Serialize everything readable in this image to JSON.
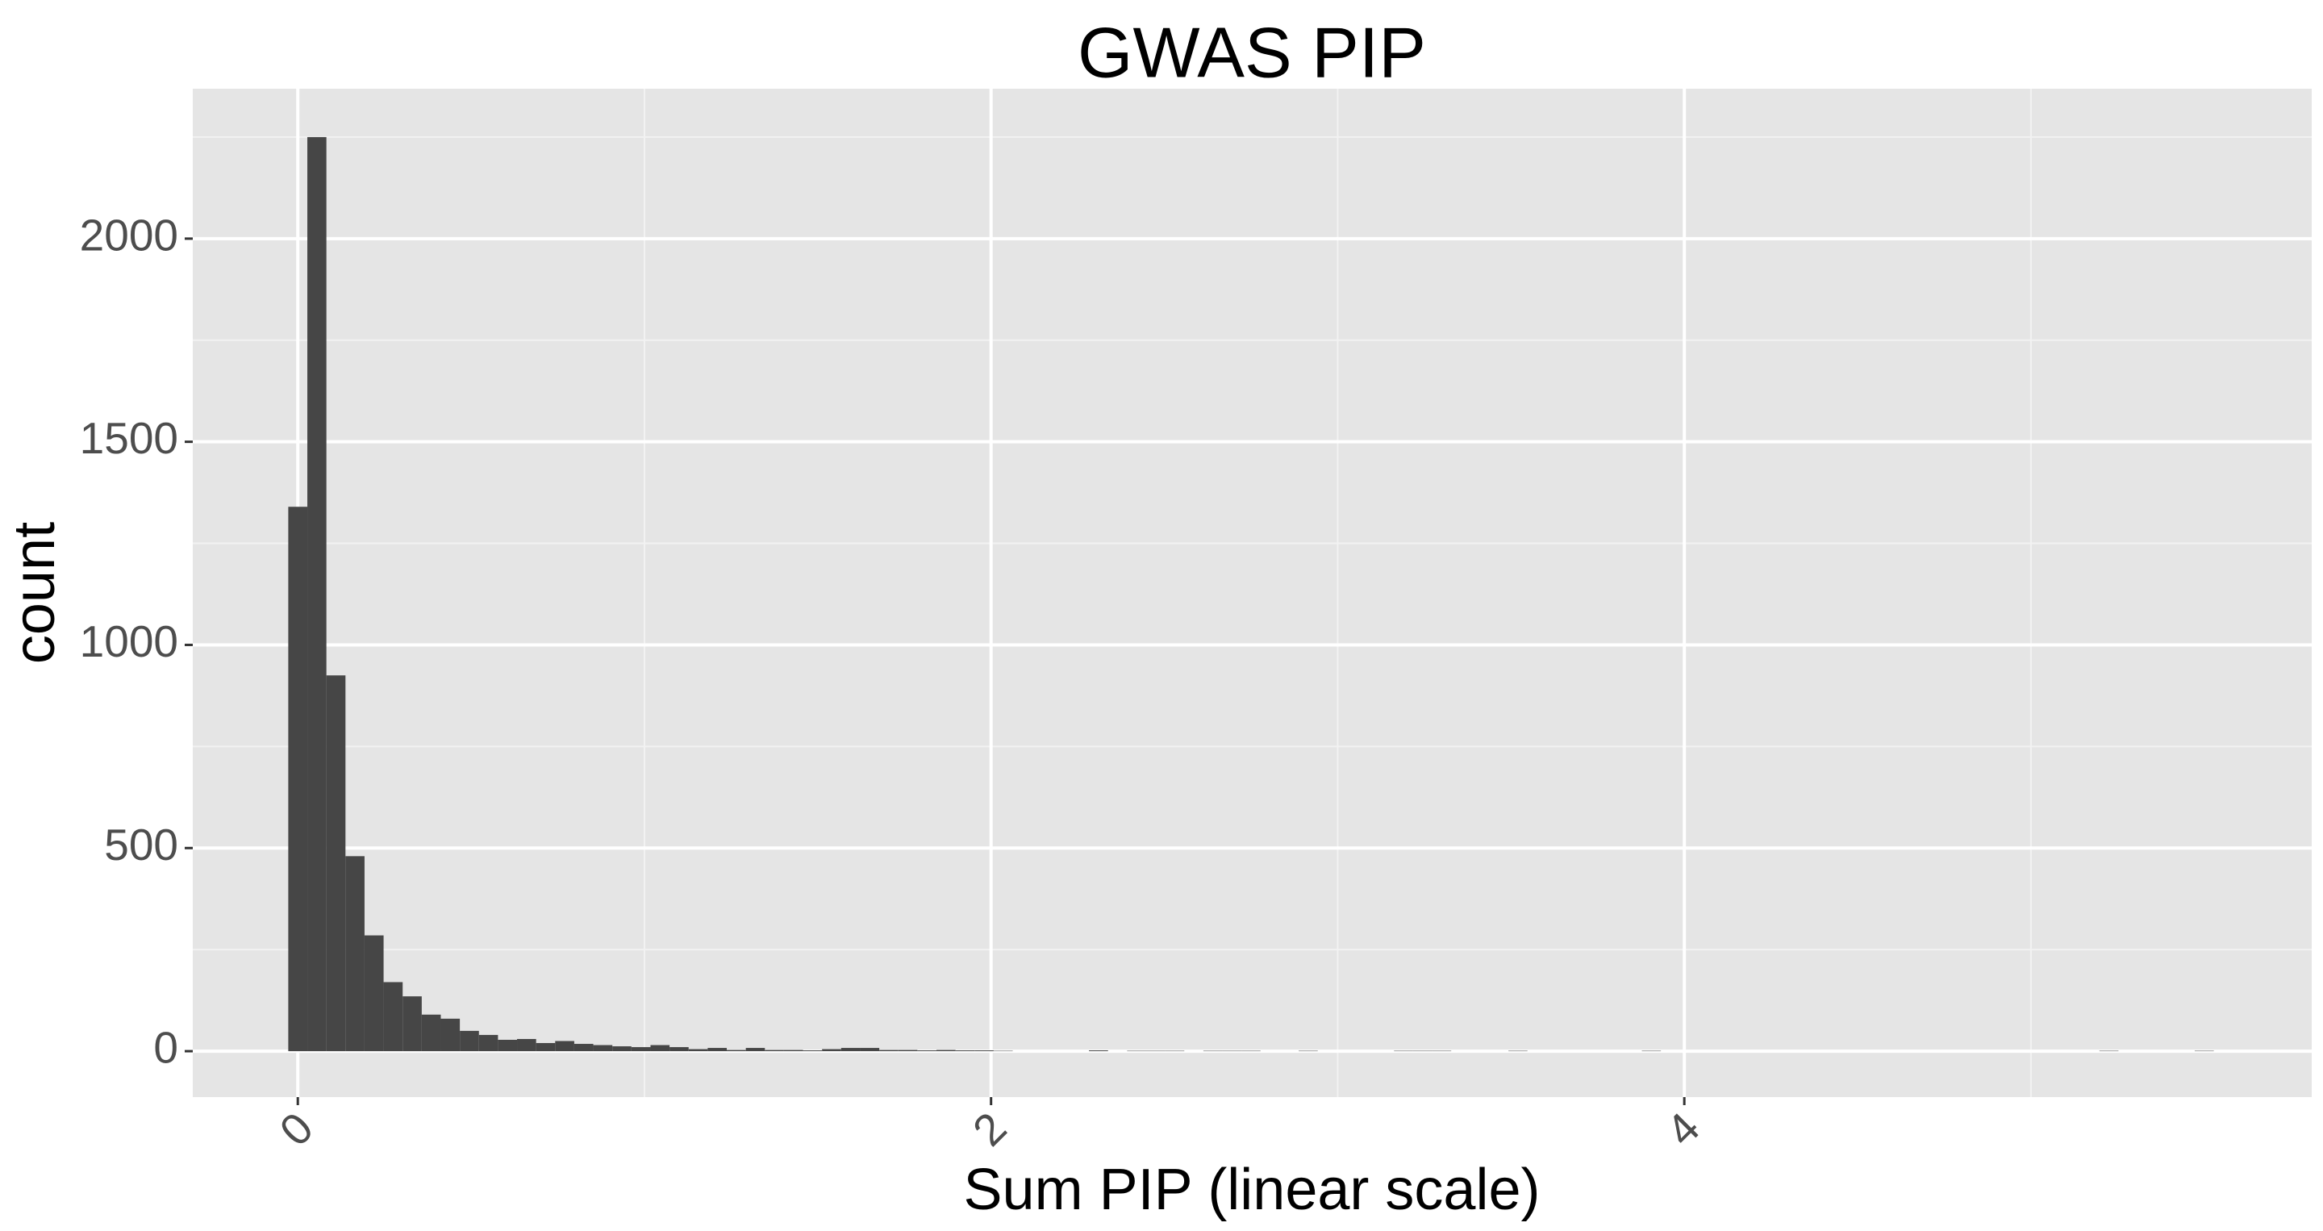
{
  "chart_data": {
    "type": "histogram",
    "title": "GWAS PIP",
    "x_label": "Sum PIP (linear scale)",
    "y_label": "count",
    "bins": [
      -0.0275,
      0.0275,
      0.0825,
      0.1375,
      0.1925,
      0.2475,
      0.3025,
      0.3575,
      0.4125,
      0.4675,
      0.5225,
      0.5775,
      0.6325,
      0.6875,
      0.7425,
      0.7975,
      0.8525,
      0.9075,
      0.9625,
      1.0175,
      1.0725,
      1.1275,
      1.1825,
      1.2375,
      1.2925,
      1.3475,
      1.4025,
      1.4575,
      1.5125,
      1.5675,
      1.6225,
      1.6775,
      1.7325,
      1.7875,
      1.8425,
      1.8975,
      1.9525,
      2.0075,
      2.0625,
      2.1175,
      2.1725,
      2.2275,
      2.2825,
      2.3375,
      2.3925,
      2.4475,
      2.5025,
      2.5575,
      2.6125,
      2.6675,
      2.7225,
      2.7775,
      2.8325,
      2.8875,
      2.9425,
      2.9975,
      3.0525,
      3.1075,
      3.1625,
      3.2175,
      3.2725,
      3.3275,
      3.3825,
      3.4375,
      3.4925,
      3.5475,
      3.6025,
      3.6575,
      3.7125,
      3.7675,
      3.8225,
      3.8775,
      3.9325,
      3.9875,
      4.0425,
      4.0975,
      4.1525,
      4.2075,
      4.2625,
      4.3175,
      4.3725,
      4.4275,
      4.4825,
      4.5375,
      4.5925,
      4.6475,
      4.7025,
      4.7575,
      4.8125,
      4.8675,
      4.9225,
      4.9775,
      5.0325,
      5.0875,
      5.1425,
      5.1975,
      5.2525,
      5.3075,
      5.3625,
      5.4175,
      5.4725,
      5.5275
    ],
    "counts": [
      1340,
      2250,
      925,
      480,
      285,
      170,
      135,
      90,
      80,
      50,
      40,
      28,
      30,
      20,
      25,
      18,
      15,
      12,
      10,
      15,
      10,
      5,
      8,
      3,
      8,
      3,
      3,
      2,
      5,
      8,
      8,
      3,
      3,
      2,
      3,
      2,
      2,
      1,
      0,
      0,
      0,
      0,
      2,
      0,
      1,
      1,
      1,
      0,
      1,
      1,
      1,
      0,
      0,
      1,
      0,
      0,
      0,
      0,
      1,
      1,
      1,
      0,
      0,
      0,
      1,
      0,
      0,
      0,
      0,
      0,
      0,
      1,
      0,
      0,
      0,
      0,
      0,
      0,
      0,
      0,
      0,
      0,
      0,
      0,
      0,
      0,
      0,
      0,
      0,
      0,
      0,
      0,
      0,
      0,
      0,
      1,
      0,
      0,
      0,
      0,
      1
    ],
    "color": "#464646",
    "xlim": [
      -0.303,
      5.81
    ],
    "xticks": [
      0,
      2,
      4
    ],
    "ylim": [
      -113,
      2369
    ],
    "yticks": [
      0,
      500,
      1000,
      1500,
      2000
    ],
    "grid": true
  }
}
